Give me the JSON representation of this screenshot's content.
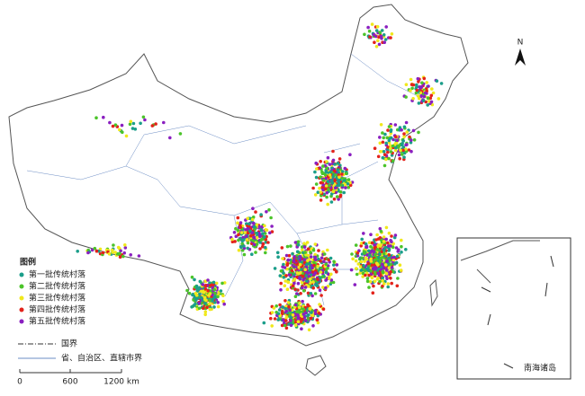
{
  "legend": {
    "title": "图例",
    "items": [
      {
        "label": "第一批传统村落",
        "color": "#1b9e8a"
      },
      {
        "label": "第二批传统村落",
        "color": "#4bc42a"
      },
      {
        "label": "第三批传统村落",
        "color": "#f0e81c"
      },
      {
        "label": "第四批传统村落",
        "color": "#e3231b"
      },
      {
        "label": "第五批传统村落",
        "color": "#8a1fc0"
      }
    ],
    "boundaries": [
      "国界",
      "省、自治区、直辖市界"
    ]
  },
  "scale": {
    "labels": [
      "0",
      "600",
      "1200 km"
    ]
  },
  "north": "N",
  "inset": {
    "label": "南海诸岛"
  }
}
